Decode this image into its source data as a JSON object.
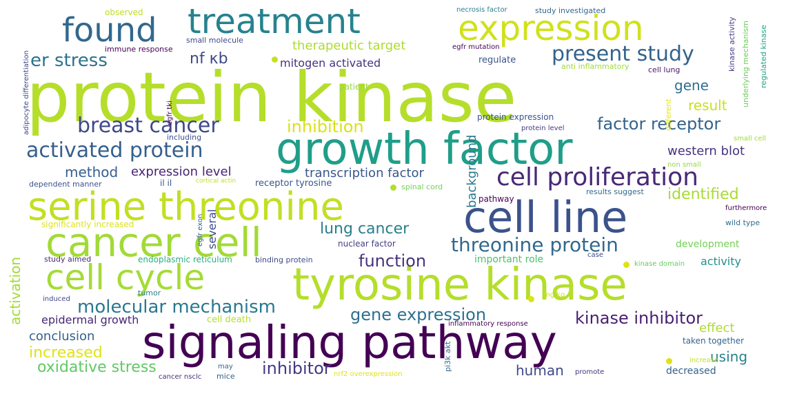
{
  "words": [
    {
      "text": "protein kinase",
      "color": "#b5de2b"
    },
    {
      "text": "growth factor",
      "color": "#1f9e89"
    },
    {
      "text": "signaling pathway",
      "color": "#440154"
    },
    {
      "text": "tyrosine kinase",
      "color": "#b5de2b"
    },
    {
      "text": "cell line",
      "color": "#3b528b"
    },
    {
      "text": "serine threonine",
      "color": "#c2df23"
    },
    {
      "text": "cancer cell",
      "color": "#a2da37"
    },
    {
      "text": "treatment",
      "color": "#26828e"
    },
    {
      "text": "expression",
      "color": "#d0e11c"
    },
    {
      "text": "found",
      "color": "#31688e"
    },
    {
      "text": "cell cycle",
      "color": "#a5db36"
    },
    {
      "text": "cell proliferation",
      "color": "#482878"
    },
    {
      "text": "activated protein",
      "color": "#355f8d"
    },
    {
      "text": "breast cancer",
      "color": "#3e4989"
    },
    {
      "text": "present study",
      "color": "#33638d"
    },
    {
      "text": "threonine protein",
      "color": "#31688e"
    },
    {
      "text": "molecular mechanism",
      "color": "#2a788e"
    },
    {
      "text": "gene expression",
      "color": "#2d708e"
    },
    {
      "text": "kinase inhibitor",
      "color": "#481f70"
    },
    {
      "text": "lung cancer",
      "color": "#277f8e"
    },
    {
      "text": "er stress",
      "color": "#2c728e"
    },
    {
      "text": "inhibition",
      "color": "#d8e219"
    },
    {
      "text": "factor receptor",
      "color": "#33638d"
    },
    {
      "text": "identified",
      "color": "#a8db34"
    },
    {
      "text": "function",
      "color": "#46327e"
    },
    {
      "text": "oxidative stress",
      "color": "#5ec962"
    },
    {
      "text": "increased",
      "color": "#dde318"
    },
    {
      "text": "inhibitor",
      "color": "#443983"
    },
    {
      "text": "nf κb",
      "color": "#3e4989"
    },
    {
      "text": "method",
      "color": "#355f8d"
    },
    {
      "text": "expression level",
      "color": "#482475"
    },
    {
      "text": "transcription factor",
      "color": "#39568c"
    },
    {
      "text": "western blot",
      "color": "#46337e"
    },
    {
      "text": "therapeutic target",
      "color": "#addc30"
    },
    {
      "text": "mitogen activated",
      "color": "#46327e"
    },
    {
      "text": "gene",
      "color": "#2e6e8e"
    },
    {
      "text": "result",
      "color": "#c8e020"
    },
    {
      "text": "background",
      "color": "#2a788e"
    },
    {
      "text": "activation",
      "color": "#a2da37"
    },
    {
      "text": "conclusion",
      "color": "#34618d"
    },
    {
      "text": "epidermal growth",
      "color": "#482677"
    },
    {
      "text": "effect",
      "color": "#addc30"
    },
    {
      "text": "using",
      "color": "#26828e"
    },
    {
      "text": "human",
      "color": "#3e4989"
    },
    {
      "text": "activity",
      "color": "#21918c"
    },
    {
      "text": "development",
      "color": "#73d056"
    },
    {
      "text": "important role",
      "color": "#4ac16d"
    },
    {
      "text": "several",
      "color": "#3e4989"
    },
    {
      "text": "decreased",
      "color": "#34618d"
    },
    {
      "text": "receptor tyrosine",
      "color": "#39568c"
    },
    {
      "text": "nuclear factor",
      "color": "#433e85"
    },
    {
      "text": "cell death",
      "color": "#b5de2b"
    },
    {
      "text": "regulate",
      "color": "#3b528b"
    },
    {
      "text": "protein expression",
      "color": "#3b528b"
    },
    {
      "text": "pathway",
      "color": "#440154"
    },
    {
      "text": "observed",
      "color": "#bddf26"
    },
    {
      "text": "il il",
      "color": "#38588c"
    },
    {
      "text": "patient",
      "color": "#95d840"
    },
    {
      "text": "anti inflammatory",
      "color": "#9fda3a"
    },
    {
      "text": "cell lung",
      "color": "#481769"
    },
    {
      "text": "immune response",
      "color": "#440154"
    },
    {
      "text": "small molecule",
      "color": "#3e4989"
    },
    {
      "text": "egfr mutation",
      "color": "#440154"
    },
    {
      "text": "necrosis factor",
      "color": "#27808e"
    },
    {
      "text": "study investigated",
      "color": "#31688e"
    },
    {
      "text": "kinase activity",
      "color": "#433e85"
    },
    {
      "text": "underlying mechanism",
      "color": "#6ccd5a"
    },
    {
      "text": "regulated kinase",
      "color": "#20a486"
    },
    {
      "text": "different",
      "color": "#e5e419"
    },
    {
      "text": "protein level",
      "color": "#453882"
    },
    {
      "text": "small cell",
      "color": "#a0da39"
    },
    {
      "text": "non small",
      "color": "#95d840"
    },
    {
      "text": "dependent manner",
      "color": "#3b528b"
    },
    {
      "text": "cortical actin",
      "color": "#c2df23"
    },
    {
      "text": "spinal cord",
      "color": "#73d056"
    },
    {
      "text": "results suggest",
      "color": "#31688e"
    },
    {
      "text": "furthermore",
      "color": "#440154"
    },
    {
      "text": "wild type",
      "color": "#2e6e8e"
    },
    {
      "text": "significantly increased",
      "color": "#dde318"
    },
    {
      "text": "study aimed",
      "color": "#482878"
    },
    {
      "text": "endoplasmic reticulum",
      "color": "#29af7f"
    },
    {
      "text": "binding protein",
      "color": "#3e4989"
    },
    {
      "text": "case",
      "color": "#3e4989"
    },
    {
      "text": "kinase domain",
      "color": "#65cb5e"
    },
    {
      "text": "tumor",
      "color": "#26828e"
    },
    {
      "text": "induced",
      "color": "#404688"
    },
    {
      "text": "mg kg",
      "color": "#d0e11c"
    },
    {
      "text": "inflammatory response",
      "color": "#440154"
    },
    {
      "text": "taken together",
      "color": "#33638d"
    },
    {
      "text": "increase",
      "color": "#c2df23"
    },
    {
      "text": "may",
      "color": "#33638d"
    },
    {
      "text": "cancer nsclc",
      "color": "#472d7b"
    },
    {
      "text": "mice",
      "color": "#33638d"
    },
    {
      "text": "nrf2 overexpression",
      "color": "#dde318"
    },
    {
      "text": "promote",
      "color": "#46327e"
    },
    {
      "text": "including",
      "color": "#3b528b"
    },
    {
      "text": "egfr tki",
      "color": "#440154"
    },
    {
      "text": "adipocyte differentiation",
      "color": "#3e4989"
    },
    {
      "text": "egfr exon",
      "color": "#34618d"
    },
    {
      "text": "pi3k akt",
      "color": "#31688e"
    }
  ],
  "dots": [
    {
      "color": "#c8e020"
    },
    {
      "color": "#b5de2b"
    },
    {
      "color": "#dde318"
    },
    {
      "color": "#dde318"
    },
    {
      "color": "#dde318"
    }
  ]
}
